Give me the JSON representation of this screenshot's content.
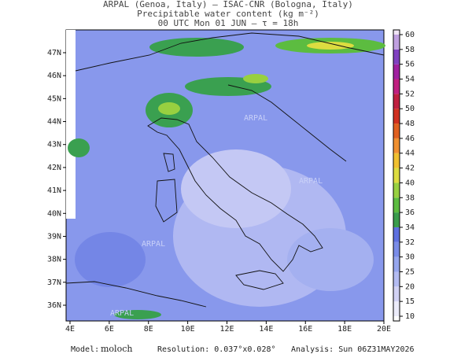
{
  "header": {
    "line1": "ARPAL (Genoa, Italy)  —  ISAC-CNR (Bologna, Italy)",
    "line2": "Precipitable water content (kg m⁻²)",
    "line3": "00 UTC Mon 01 JUN  —  τ = 18h"
  },
  "map": {
    "lon_ticks": [
      "4E",
      "6E",
      "8E",
      "10E",
      "12E",
      "14E",
      "16E",
      "18E",
      "20E"
    ],
    "lat_ticks": [
      "47N",
      "46N",
      "45N",
      "44N",
      "43N",
      "42N",
      "41N",
      "40N",
      "39N",
      "38N",
      "37N",
      "36N"
    ],
    "watermark": "ARPAL"
  },
  "colorbar": {
    "levels": [
      10,
      15,
      20,
      25,
      30,
      32,
      34,
      36,
      38,
      40,
      42,
      44,
      46,
      48,
      50,
      52,
      54,
      56,
      58,
      60
    ],
    "colors": [
      "#ffffff",
      "#ececfa",
      "#d2d2f4",
      "#b4bcf2",
      "#96a6ee",
      "#7a8ce8",
      "#5e70e0",
      "#3a9c4c",
      "#5cbc40",
      "#98d040",
      "#dcdc40",
      "#f0c030",
      "#f09030",
      "#e06020",
      "#d03020",
      "#c02040",
      "#c02080",
      "#a020a0",
      "#8040c0",
      "#c0a0e0",
      "#f0e4f4"
    ]
  },
  "footer": {
    "model_label": "Model:",
    "model": "moloch",
    "resolution": "Resolution: 0.037°x0.028°",
    "analysis": "Analysis: Sun 06Z31MAY2026"
  }
}
